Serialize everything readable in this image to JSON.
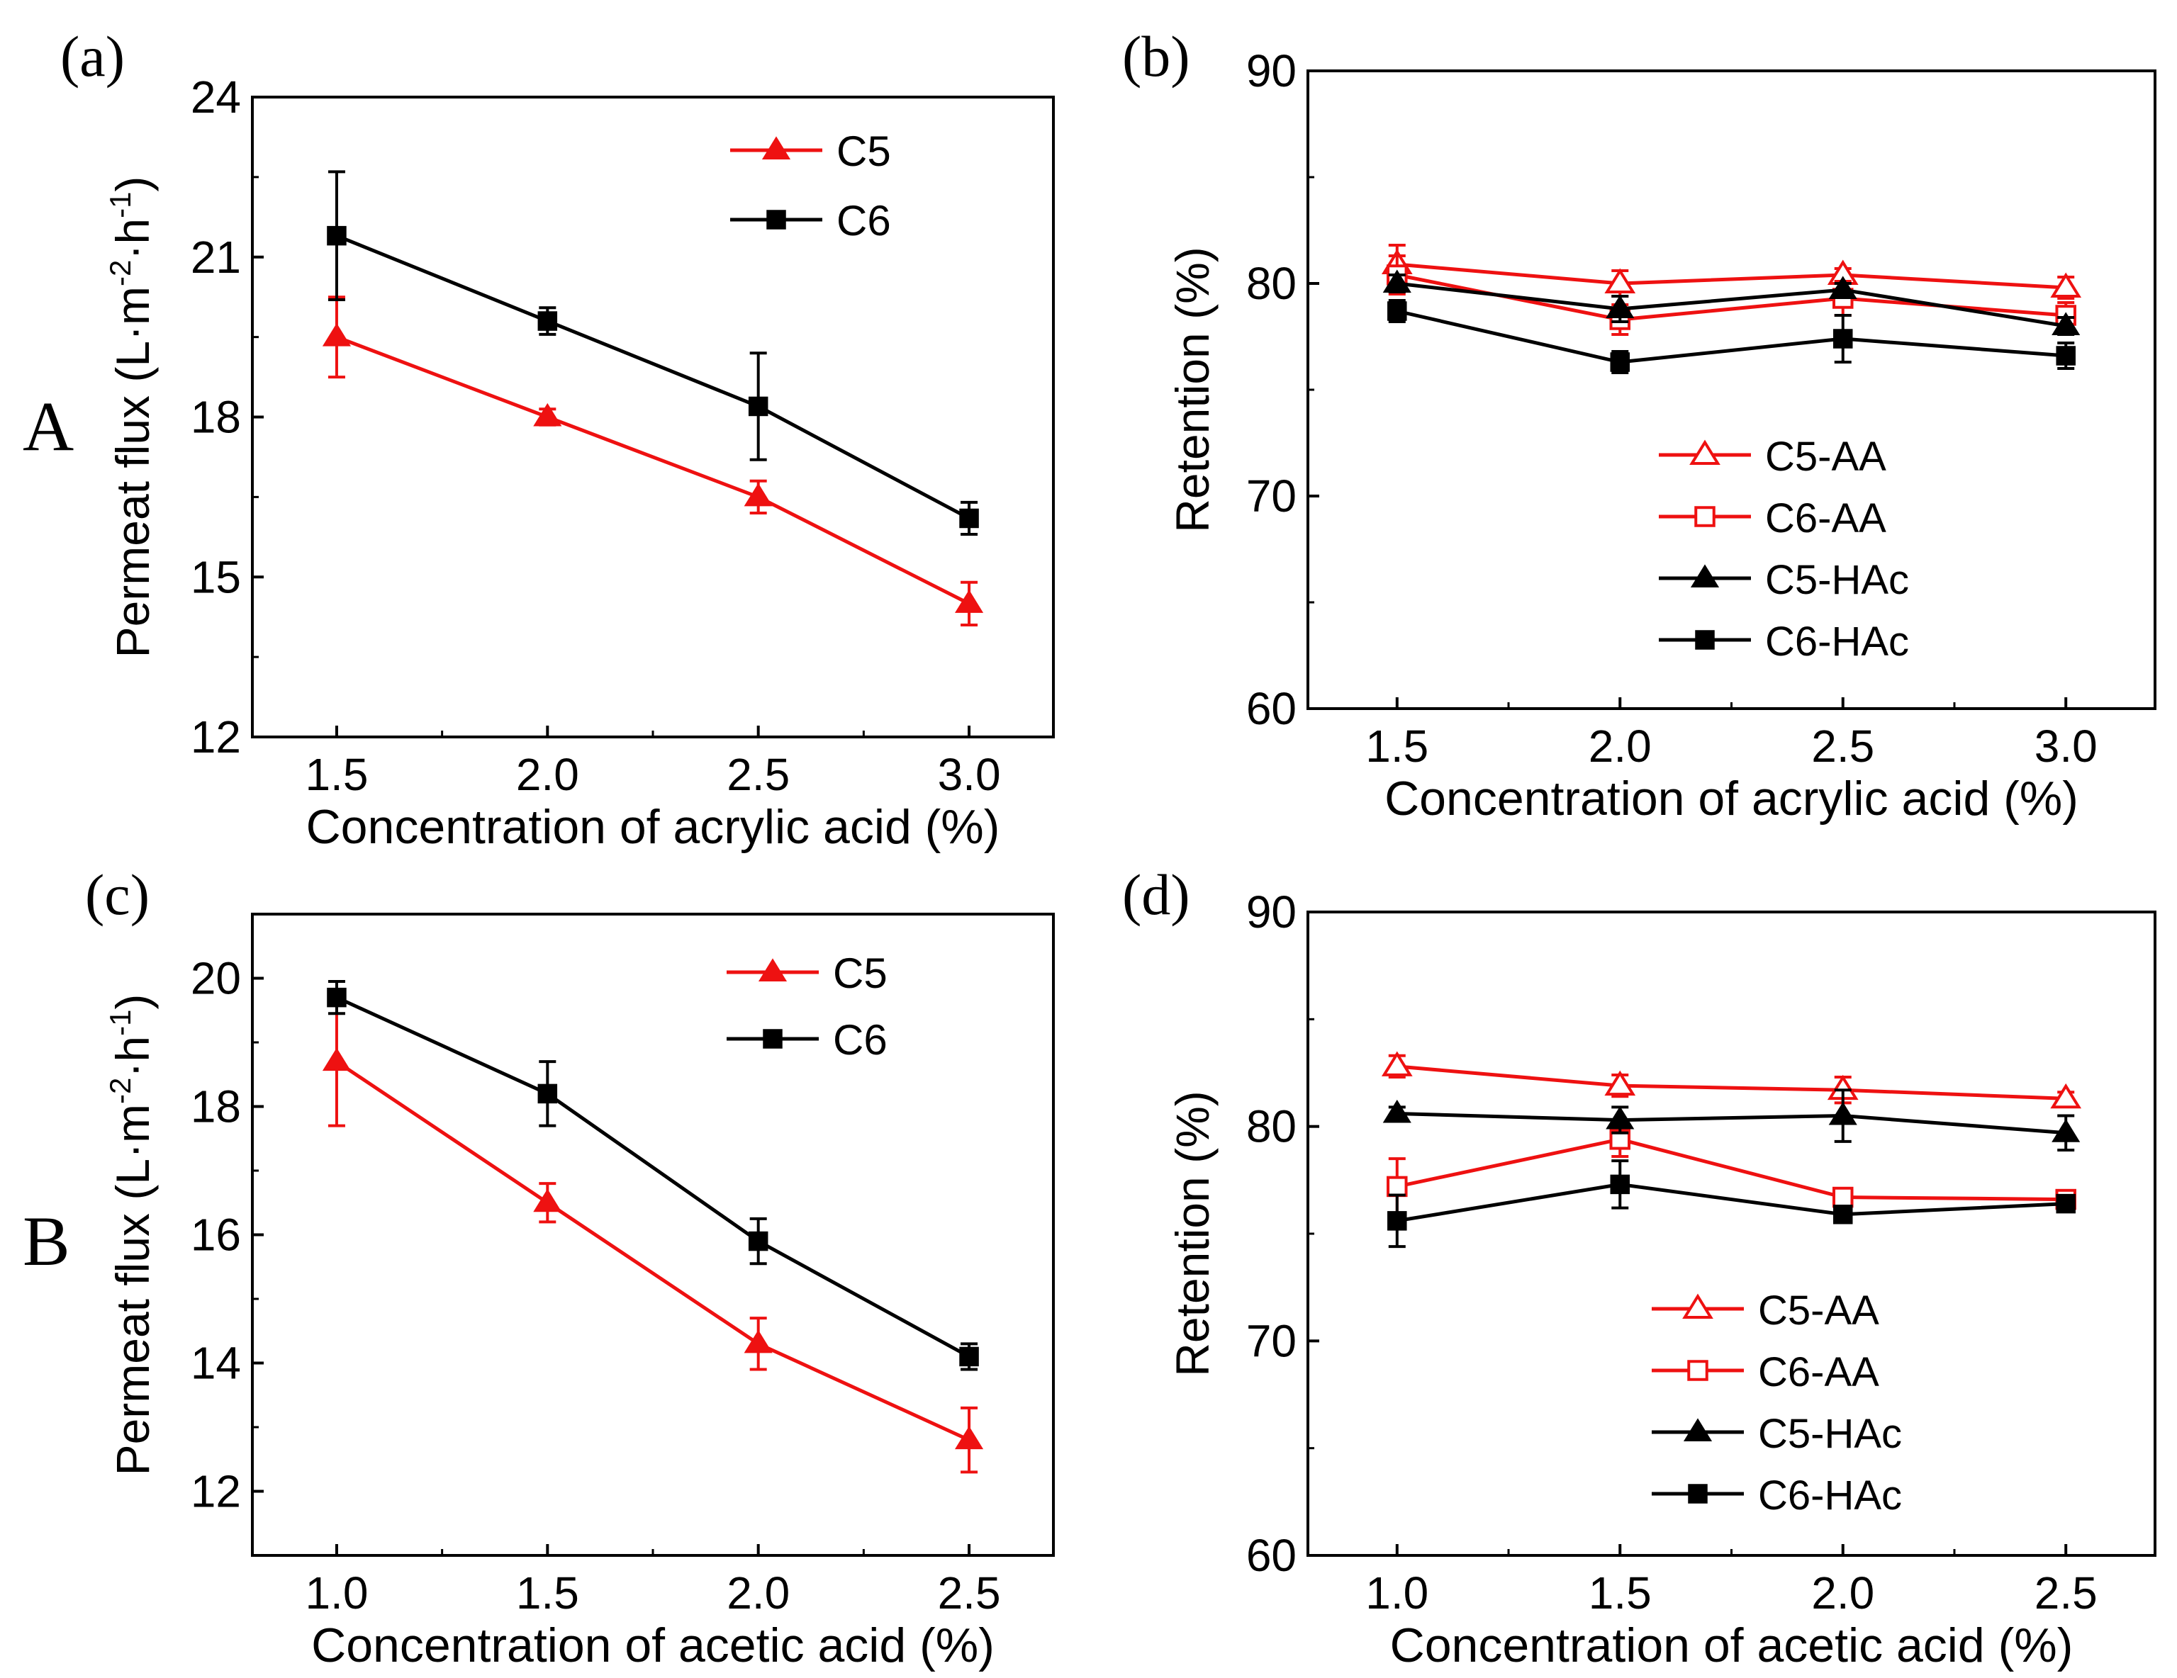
{
  "figure_labels": {
    "row_a": "A",
    "row_b": "B"
  },
  "colors": {
    "red": "#ee1111",
    "black": "#000000"
  },
  "chart_data": [
    {
      "id": "a",
      "panel_label": "(a)",
      "type": "line",
      "title": "",
      "xlabel": "Concentration of acrylic acid (%)",
      "ylabel": {
        "base": "Permeat flux (L·m",
        "sup1": "-2",
        "mid": "·h",
        "sup2": "-1",
        "end": ")"
      },
      "xlim": [
        1.3,
        3.2
      ],
      "ylim": [
        12,
        24
      ],
      "xticks": [
        1.5,
        2.0,
        2.5,
        3.0
      ],
      "xticklabels": [
        "1.5",
        "2.0",
        "2.5",
        "3.0"
      ],
      "yticks": [
        12,
        15,
        18,
        21,
        24
      ],
      "yticklabels": [
        "12",
        "15",
        "18",
        "21",
        "24"
      ],
      "legend_position": "top-right",
      "x": [
        1.5,
        2.0,
        2.5,
        3.0
      ],
      "series": [
        {
          "name": "C5",
          "color": "#ee1111",
          "marker": "triangle",
          "filled": true,
          "values": [
            19.5,
            18.0,
            16.5,
            14.5
          ],
          "errors": [
            0.75,
            0.15,
            0.3,
            0.4
          ]
        },
        {
          "name": "C6",
          "color": "#000000",
          "marker": "square",
          "filled": true,
          "values": [
            21.4,
            19.8,
            18.2,
            16.1
          ],
          "errors": [
            1.2,
            0.25,
            1.0,
            0.3
          ]
        }
      ]
    },
    {
      "id": "b",
      "panel_label": "(b)",
      "type": "line",
      "title": "",
      "xlabel": "Concentration of acrylic acid (%)",
      "ylabel": "Retention (%)",
      "xlim": [
        1.3,
        3.2
      ],
      "ylim": [
        60,
        90
      ],
      "xticks": [
        1.5,
        2.0,
        2.5,
        3.0
      ],
      "xticklabels": [
        "1.5",
        "2.0",
        "2.5",
        "3.0"
      ],
      "yticks": [
        60,
        70,
        80,
        90
      ],
      "yticklabels": [
        "60",
        "70",
        "80",
        "90"
      ],
      "legend_position": "bottom-right",
      "x": [
        1.5,
        2.0,
        2.5,
        3.0
      ],
      "series": [
        {
          "name": "C5-AA",
          "color": "#ee1111",
          "marker": "triangle",
          "filled": false,
          "values": [
            80.9,
            80.0,
            80.4,
            79.8
          ],
          "errors": [
            0.9,
            0.6,
            0.3,
            0.5
          ]
        },
        {
          "name": "C6-AA",
          "color": "#ee1111",
          "marker": "square",
          "filled": false,
          "values": [
            80.4,
            78.3,
            79.3,
            78.5
          ],
          "errors": [
            0.9,
            0.7,
            0.8,
            0.6
          ]
        },
        {
          "name": "C5-HAc",
          "color": "#000000",
          "marker": "triangle",
          "filled": true,
          "values": [
            80.0,
            78.8,
            79.7,
            78.0
          ],
          "errors": [
            0.4,
            0.6,
            0.3,
            0.4
          ]
        },
        {
          "name": "C6-HAc",
          "color": "#000000",
          "marker": "square",
          "filled": true,
          "values": [
            78.7,
            76.3,
            77.4,
            76.6
          ],
          "errors": [
            0.5,
            0.5,
            1.1,
            0.6
          ]
        }
      ]
    },
    {
      "id": "c",
      "panel_label": "(c)",
      "type": "line",
      "title": "",
      "xlabel": "Concentration of acetic acid (%)",
      "ylabel": {
        "base": "Permeat flux (L·m",
        "sup1": "-2",
        "mid": "·h",
        "sup2": "-1",
        "end": ")"
      },
      "xlim": [
        0.8,
        2.7
      ],
      "ylim": [
        11,
        21
      ],
      "xticks": [
        1.0,
        1.5,
        2.0,
        2.5
      ],
      "xticklabels": [
        "1.0",
        "1.5",
        "2.0",
        "2.5"
      ],
      "yticks": [
        12,
        14,
        16,
        18,
        20
      ],
      "yticklabels": [
        "12",
        "14",
        "16",
        "18",
        "20"
      ],
      "legend_position": "top-right",
      "x": [
        1.0,
        1.5,
        2.0,
        2.5
      ],
      "series": [
        {
          "name": "C5",
          "color": "#ee1111",
          "marker": "triangle",
          "filled": true,
          "values": [
            18.7,
            16.5,
            14.3,
            12.8
          ],
          "errors": [
            1.0,
            0.3,
            0.4,
            0.5
          ]
        },
        {
          "name": "C6",
          "color": "#000000",
          "marker": "square",
          "filled": true,
          "values": [
            19.7,
            18.2,
            15.9,
            14.1
          ],
          "errors": [
            0.25,
            0.5,
            0.35,
            0.2
          ]
        }
      ]
    },
    {
      "id": "d",
      "panel_label": "(d)",
      "type": "line",
      "title": "",
      "xlabel": "Concentration of acetic acid (%)",
      "ylabel": "Retention (%)",
      "xlim": [
        0.8,
        2.7
      ],
      "ylim": [
        60,
        90
      ],
      "xticks": [
        1.0,
        1.5,
        2.0,
        2.5
      ],
      "xticklabels": [
        "1.0",
        "1.5",
        "2.0",
        "2.5"
      ],
      "yticks": [
        60,
        70,
        80,
        90
      ],
      "yticklabels": [
        "60",
        "70",
        "80",
        "90"
      ],
      "legend_position": "bottom-right",
      "x": [
        1.0,
        1.5,
        2.0,
        2.5
      ],
      "series": [
        {
          "name": "C5-AA",
          "color": "#ee1111",
          "marker": "triangle",
          "filled": false,
          "values": [
            82.8,
            81.9,
            81.7,
            81.3
          ],
          "errors": [
            0.5,
            0.5,
            0.6,
            0.3
          ]
        },
        {
          "name": "C6-AA",
          "color": "#ee1111",
          "marker": "square",
          "filled": false,
          "values": [
            77.2,
            79.4,
            76.7,
            76.6
          ],
          "errors": [
            1.3,
            0.8,
            0.3,
            0.3
          ]
        },
        {
          "name": "C5-HAc",
          "color": "#000000",
          "marker": "triangle",
          "filled": true,
          "values": [
            80.6,
            80.3,
            80.5,
            79.7
          ],
          "errors": [
            0.3,
            0.6,
            1.2,
            0.8
          ]
        },
        {
          "name": "C6-HAc",
          "color": "#000000",
          "marker": "square",
          "filled": true,
          "values": [
            75.6,
            77.3,
            75.9,
            76.4
          ],
          "errors": [
            1.2,
            1.1,
            0.3,
            0.3
          ]
        }
      ]
    }
  ]
}
